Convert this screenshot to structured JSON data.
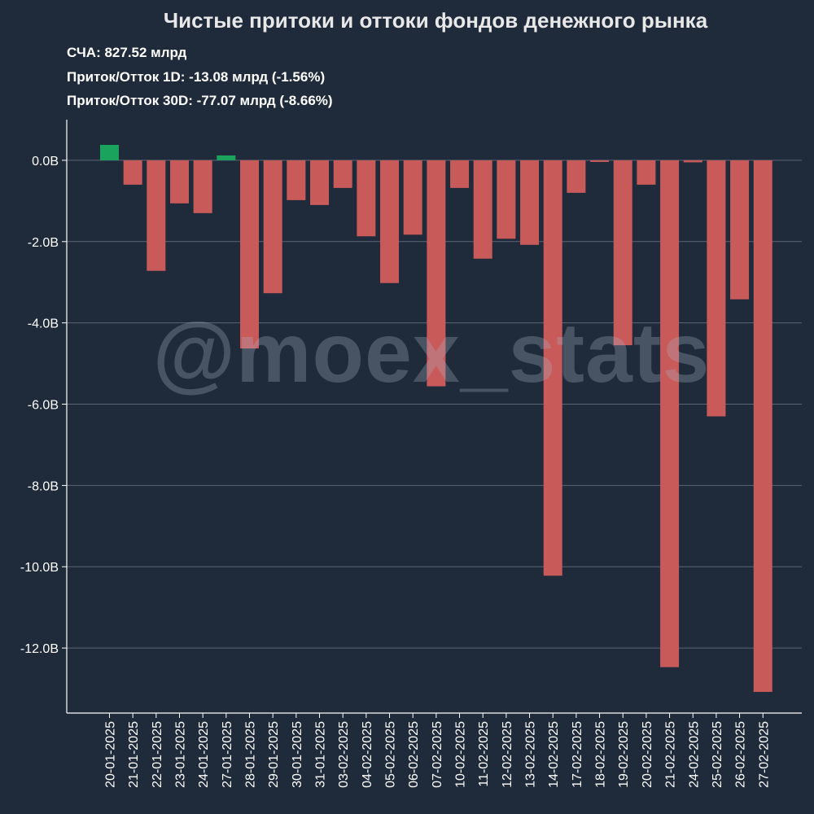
{
  "header": {
    "title": "Чистые притоки и оттоки фондов денежного рынка",
    "stats": [
      "СЧА: 827.52 млрд",
      "Приток/Отток 1D: -13.08 млрд (-1.56%)",
      "Приток/Отток 30D: -77.07 млрд (-8.66%)"
    ]
  },
  "watermark": "@moex_stats",
  "colors": {
    "background": "#1f2a3a",
    "positive": "#1aa35c",
    "negative": "#c95a5a",
    "grid": "#5b6575"
  },
  "chart_data": {
    "type": "bar",
    "title": "Чистые притоки и оттоки фондов денежного рынка",
    "xlabel": "",
    "ylabel": "",
    "ylim": [
      -13.6,
      1.0
    ],
    "yticks": [
      0,
      -2,
      -4,
      -6,
      -8,
      -10,
      -12
    ],
    "ytick_labels": [
      "0.0B",
      "-2.0B",
      "-4.0B",
      "-6.0B",
      "-8.0B",
      "-10.0B",
      "-12.0B"
    ],
    "grid": true,
    "categories": [
      "20-01-2025",
      "21-01-2025",
      "22-01-2025",
      "23-01-2025",
      "24-01-2025",
      "27-01-2025",
      "28-01-2025",
      "29-01-2025",
      "30-01-2025",
      "31-01-2025",
      "03-02-2025",
      "04-02-2025",
      "05-02-2025",
      "06-02-2025",
      "07-02-2025",
      "10-02-2025",
      "11-02-2025",
      "12-02-2025",
      "13-02-2025",
      "14-02-2025",
      "17-02-2025",
      "18-02-2025",
      "19-02-2025",
      "20-02-2025",
      "21-02-2025",
      "24-02-2025",
      "25-02-2025",
      "26-02-2025",
      "27-02-2025"
    ],
    "values": [
      0.38,
      -0.6,
      -2.72,
      -1.06,
      -1.3,
      0.12,
      -4.63,
      -3.27,
      -0.98,
      -1.1,
      -0.68,
      -1.87,
      -3.02,
      -1.83,
      -5.56,
      -0.68,
      -2.42,
      -1.93,
      -2.08,
      -10.22,
      -0.8,
      -0.04,
      -4.55,
      -0.6,
      -12.47,
      -0.05,
      -6.3,
      -3.42,
      -13.08
    ]
  }
}
